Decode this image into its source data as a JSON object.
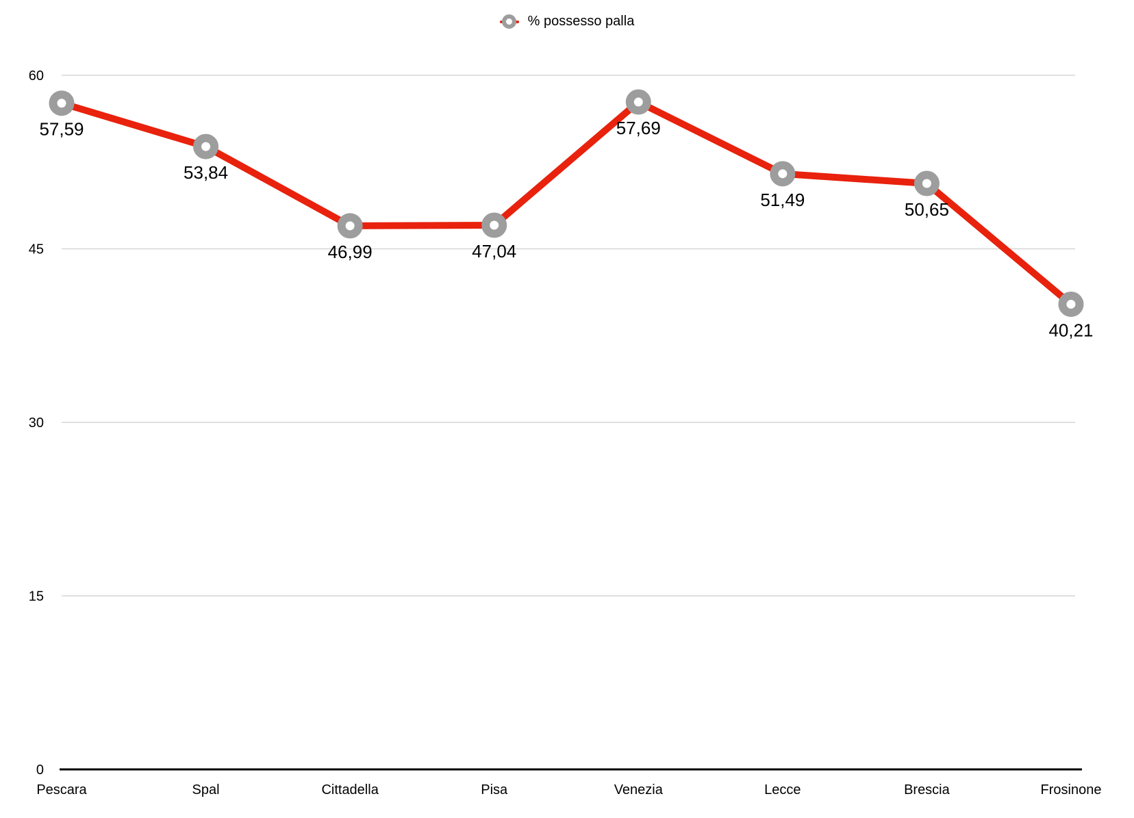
{
  "legend": {
    "series_label": "% possesso palla"
  },
  "chart_data": {
    "type": "line",
    "title": "",
    "xlabel": "",
    "ylabel": "",
    "categories": [
      "Pescara",
      "Spal",
      "Cittadella",
      "Pisa",
      "Venezia",
      "Lecce",
      "Brescia",
      "Frosinone"
    ],
    "series": [
      {
        "name": "% possesso palla",
        "values": [
          57.59,
          53.84,
          46.99,
          47.04,
          57.69,
          51.49,
          50.65,
          40.21
        ],
        "labels": [
          "57,59",
          "53,84",
          "46,99",
          "47,04",
          "57,69",
          "51,49",
          "50,65",
          "40,21"
        ]
      }
    ],
    "ylim": [
      0,
      60
    ],
    "yticks": [
      0,
      15,
      30,
      45,
      60
    ],
    "ytick_labels": [
      "0",
      "15",
      "30",
      "45",
      "60"
    ],
    "grid": "horizontal",
    "legend_position": "top-center",
    "colors": {
      "line": "#e8220d",
      "marker_ring": "#9d9d9d",
      "marker_hole": "#ffffff",
      "gridline": "#d6d6d6",
      "axis": "#000000",
      "text": "#000000"
    }
  }
}
